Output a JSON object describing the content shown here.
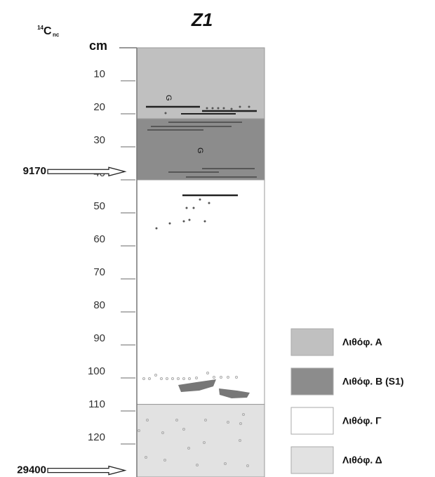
{
  "title": "Z1",
  "c14_label": {
    "super": "14",
    "main": "C",
    "sub": "nc"
  },
  "depth_axis": {
    "label": "cm",
    "lim": [
      0,
      130
    ],
    "ticks": [
      10,
      20,
      30,
      40,
      50,
      60,
      70,
      80,
      90,
      100,
      110,
      120
    ]
  },
  "layers": [
    {
      "name": "Λιθόφ. Α",
      "top": 0,
      "bottom": 21.5,
      "color": "#c0c0c0"
    },
    {
      "name": "Λιθόφ. Β (S1)",
      "top": 21.5,
      "bottom": 40,
      "color": "#8c8c8c"
    },
    {
      "name": "Λιθόφ. Γ",
      "top": 40,
      "bottom": 108,
      "color": "#ffffff"
    },
    {
      "name": "Λιθόφ. Δ",
      "top": 108,
      "bottom": 130,
      "color": "#e2e2e2"
    }
  ],
  "dates": [
    {
      "label": "9170",
      "depth": 37.5
    },
    {
      "label": "29400",
      "depth": 128
    }
  ]
}
